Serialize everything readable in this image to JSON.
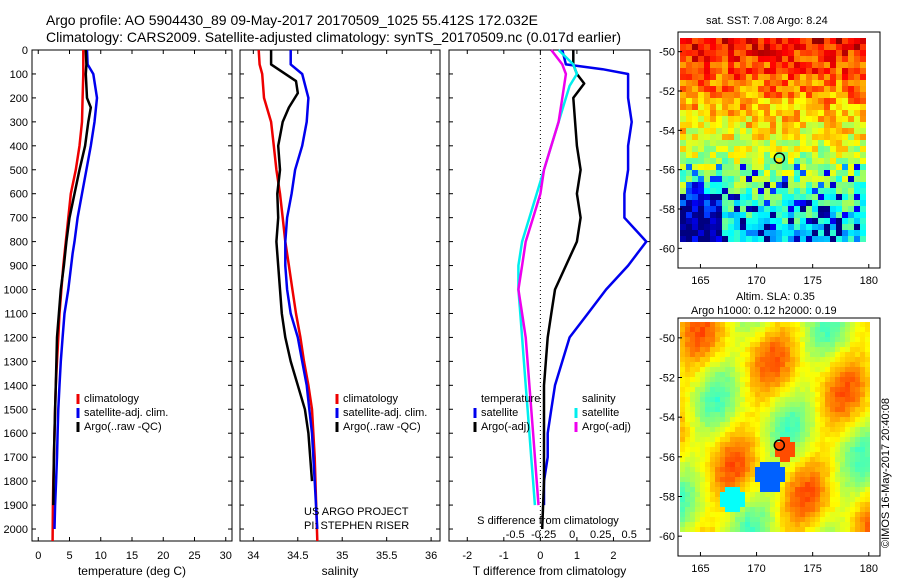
{
  "title_line1": "Argo profile: AO 5904430_89 09-May-2017 20170509_1025 55.412S 172.032E",
  "title_line2": "Climatology: CARS2009. Satellite-adjusted climatology: synTS_20170509.nc (0.017d earlier)",
  "map1_title": "sat. SST: 7.08 Argo: 8.24",
  "map2_title1": "Altim. SLA: 0.35",
  "map2_title2": "Argo h1000: 0.12 h2000: 0.19",
  "credit": "©IMOS 16-May-2017 20:40:08",
  "project_line1": "US ARGO PROJECT",
  "project_line2": "PI: STEPHEN RISER",
  "colors": {
    "climatology": "#ee0000",
    "satellite": "#0000ee",
    "argo": "#000000",
    "s_satellite": "#00eeee",
    "s_argo": "#ee00ee"
  },
  "chart_data": [
    {
      "type": "line",
      "xlabel": "temperature (deg C)",
      "ylabel": "",
      "xlim": [
        -1,
        31
      ],
      "ylim": [
        2050,
        0
      ],
      "xticks": [
        0,
        5,
        10,
        15,
        20,
        25,
        30
      ],
      "yticks": [
        0,
        100,
        200,
        300,
        400,
        500,
        600,
        700,
        800,
        900,
        1000,
        1100,
        1200,
        1300,
        1400,
        1500,
        1600,
        1700,
        1800,
        1900,
        2000
      ],
      "legend": [
        "climatology",
        "satellite-adj. clim.",
        "Argo(..raw -QC)"
      ],
      "series": [
        {
          "name": "climatology",
          "color": "#ee0000",
          "x": [
            7.2,
            7.2,
            7.1,
            7.0,
            6.6,
            6.0,
            5.2,
            4.8,
            4.4,
            4.0,
            3.7,
            3.4,
            3.2,
            3.0,
            2.8,
            2.7,
            2.6,
            2.5,
            2.4,
            2.35,
            2.3
          ],
          "y": [
            0,
            100,
            200,
            300,
            400,
            500,
            600,
            700,
            800,
            900,
            1000,
            1100,
            1200,
            1300,
            1400,
            1500,
            1600,
            1700,
            1800,
            1900,
            2050
          ]
        },
        {
          "name": "satellite-adj. clim.",
          "color": "#0000ee",
          "x": [
            7.8,
            7.9,
            8.8,
            9.4,
            9.0,
            8.4,
            7.7,
            7.0,
            6.3,
            5.8,
            5.5,
            4.8,
            4.2,
            3.9,
            3.6,
            3.4,
            3.2,
            3.1,
            3.0,
            2.85,
            2.7,
            2.6
          ],
          "y": [
            0,
            60,
            100,
            200,
            300,
            400,
            500,
            600,
            700,
            800,
            850,
            1000,
            1100,
            1200,
            1300,
            1400,
            1500,
            1600,
            1700,
            1800,
            1900,
            2000
          ]
        },
        {
          "name": "Argo(..raw -QC)",
          "color": "#000000",
          "x": [
            7.6,
            7.7,
            7.6,
            7.8,
            8.4,
            8.0,
            7.5,
            6.6,
            5.8,
            5.0,
            4.5,
            4.1,
            3.6,
            3.3,
            3.0,
            2.9,
            2.8,
            2.7,
            2.6,
            2.5,
            2.45,
            2.4
          ],
          "y": [
            0,
            60,
            100,
            200,
            240,
            300,
            400,
            500,
            600,
            700,
            800,
            900,
            1000,
            1100,
            1200,
            1300,
            1400,
            1500,
            1600,
            1700,
            1800,
            1900
          ]
        }
      ]
    },
    {
      "type": "line",
      "xlabel": "salinity",
      "ylabel": "",
      "xlim": [
        33.85,
        36.1
      ],
      "ylim": [
        2050,
        0
      ],
      "xticks": [
        34,
        34.5,
        35,
        35.5,
        36
      ],
      "legend": [
        "climatology",
        "satellite-adj. clim.",
        "Argo(..raw -QC)"
      ],
      "series": [
        {
          "name": "climatology",
          "color": "#ee0000",
          "x": [
            34.06,
            34.07,
            34.1,
            34.12,
            34.2,
            34.23,
            34.26,
            34.3,
            34.33,
            34.36,
            34.4,
            34.44,
            34.48,
            34.53,
            34.57,
            34.62,
            34.66,
            34.69,
            34.72
          ],
          "y": [
            0,
            60,
            100,
            200,
            300,
            400,
            500,
            600,
            700,
            800,
            900,
            1000,
            1100,
            1200,
            1300,
            1400,
            1500,
            1700,
            2050
          ]
        },
        {
          "name": "satellite-adj. clim.",
          "color": "#0000ee",
          "x": [
            34.42,
            34.42,
            34.55,
            34.62,
            34.6,
            34.55,
            34.47,
            34.43,
            34.38,
            34.36,
            34.36,
            34.38,
            34.42,
            34.5,
            34.55,
            34.6,
            34.63,
            34.66,
            34.69,
            34.72
          ],
          "y": [
            0,
            60,
            100,
            200,
            300,
            400,
            500,
            600,
            700,
            800,
            900,
            1000,
            1100,
            1200,
            1300,
            1400,
            1500,
            1600,
            1800,
            2000
          ]
        },
        {
          "name": "Argo(..raw -QC)",
          "color": "#000000",
          "x": [
            34.2,
            34.2,
            34.48,
            34.5,
            34.4,
            34.33,
            34.28,
            34.3,
            34.27,
            34.28,
            34.26,
            34.28,
            34.3,
            34.32,
            34.36,
            34.42,
            34.5,
            34.58,
            34.62,
            34.64,
            34.66
          ],
          "y": [
            0,
            60,
            130,
            180,
            240,
            300,
            400,
            500,
            600,
            700,
            800,
            900,
            1000,
            1100,
            1200,
            1300,
            1400,
            1500,
            1600,
            1700,
            1800
          ]
        }
      ]
    },
    {
      "type": "line",
      "xlabel": "T difference from climatology",
      "x2label": "S difference from climatology",
      "ylabel": "",
      "xlim": [
        -2.5,
        3.0
      ],
      "ylim": [
        2050,
        0
      ],
      "xticks": [
        -2,
        -1,
        0,
        1,
        2
      ],
      "x2ticks": [
        "-0.5",
        "-0.25",
        "0",
        "0.25",
        "0.5"
      ],
      "legend_temperature": {
        "heading": "temperature",
        "items": [
          "satellite",
          "Argo(-adj)"
        ]
      },
      "legend_salinity": {
        "heading": "salinity",
        "items": [
          "satellite",
          "Argo(-adj)"
        ]
      },
      "series": [
        {
          "name": "satellite",
          "group": "temperature",
          "color": "#0000ee",
          "x": [
            0.6,
            0.7,
            1.7,
            2.4,
            2.4,
            2.5,
            2.4,
            2.4,
            2.3,
            2.3,
            2.9,
            2.4,
            1.8,
            1.3,
            0.8,
            0.6,
            0.4,
            0.3,
            0.2,
            0.2,
            0.1,
            0.1
          ],
          "y": [
            0,
            60,
            80,
            100,
            200,
            300,
            400,
            500,
            600,
            700,
            800,
            900,
            1000,
            1100,
            1200,
            1300,
            1400,
            1500,
            1600,
            1700,
            1800,
            1900
          ]
        },
        {
          "name": "Argo(-adj)",
          "group": "temperature",
          "color": "#000000",
          "x": [
            0.9,
            0.9,
            1.0,
            1.2,
            0.9,
            1.0,
            1.1,
            1.0,
            1.1,
            1.0,
            0.7,
            0.4,
            0.3,
            0.2,
            0.1,
            0.1,
            0.1,
            0.05
          ],
          "y": [
            0,
            60,
            100,
            140,
            200,
            400,
            500,
            600,
            700,
            800,
            900,
            1000,
            1100,
            1200,
            1400,
            1600,
            1800,
            2000
          ]
        },
        {
          "name": "satellite",
          "group": "salinity",
          "color": "#00eeee",
          "x": [
            0.5,
            0.9,
            1.0,
            0.8,
            0.7,
            0.5,
            0.3,
            0.1,
            -0.1,
            -0.3,
            -0.5,
            -0.6,
            -0.6,
            -0.55,
            -0.5,
            -0.45,
            -0.4,
            -0.35,
            -0.3,
            -0.25,
            -0.2,
            -0.15
          ],
          "y": [
            0,
            60,
            100,
            150,
            200,
            300,
            400,
            500,
            600,
            700,
            800,
            900,
            1000,
            1100,
            1200,
            1300,
            1400,
            1500,
            1600,
            1700,
            1800,
            1900
          ]
        },
        {
          "name": "Argo(-adj)",
          "group": "salinity",
          "color": "#ee00ee",
          "x": [
            0.3,
            0.6,
            0.7,
            0.6,
            0.5,
            0.3,
            0.1,
            0.0,
            -0.2,
            -0.4,
            -0.5,
            -0.6,
            -0.5,
            -0.4,
            -0.3,
            -0.2,
            -0.1,
            -0.05
          ],
          "y": [
            0,
            60,
            100,
            200,
            300,
            400,
            500,
            600,
            700,
            800,
            900,
            1000,
            1100,
            1200,
            1400,
            1600,
            1800,
            1900
          ]
        }
      ]
    },
    {
      "type": "heatmap",
      "title": "sat. SST: 7.08 Argo: 8.24",
      "xlim": [
        163,
        181
      ],
      "ylim": [
        -61,
        -49
      ],
      "xticks": [
        165,
        170,
        175,
        180
      ],
      "yticks": [
        -50,
        -52,
        -54,
        -56,
        -58,
        -60
      ],
      "marker": {
        "x": 172.03,
        "y": -55.41
      }
    },
    {
      "type": "heatmap",
      "title": "Altim. SLA: 0.35",
      "xlim": [
        163,
        181
      ],
      "ylim": [
        -61,
        -49
      ],
      "xticks": [
        165,
        170,
        175,
        180
      ],
      "yticks": [
        -50,
        -52,
        -54,
        -56,
        -58,
        -60
      ],
      "marker": {
        "x": 172.03,
        "y": -55.41
      }
    }
  ]
}
